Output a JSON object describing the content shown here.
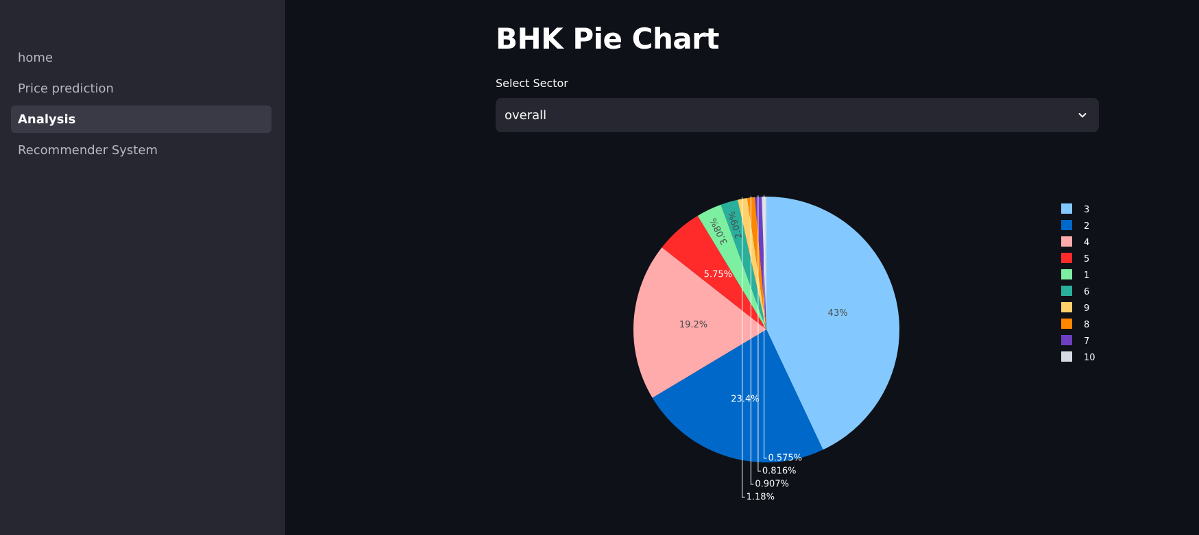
{
  "sidebar": {
    "items": [
      {
        "label": "home",
        "active": false
      },
      {
        "label": "Price prediction",
        "active": false
      },
      {
        "label": "Analysis",
        "active": true
      },
      {
        "label": "Recommender System",
        "active": false
      }
    ]
  },
  "main": {
    "title": "BHK Pie Chart",
    "select": {
      "label": "Select Sector",
      "value": "overall",
      "icon": "chevron-down-icon"
    }
  },
  "chart_data": {
    "type": "pie",
    "title": "",
    "legend_position": "top-right",
    "slices": [
      {
        "label": "3",
        "value": 43,
        "text": "43%",
        "color": "#83c9ff",
        "text_color": "#4a4a4a"
      },
      {
        "label": "2",
        "value": 23.4,
        "text": "23.4%",
        "color": "#0068c9",
        "text_color": "#ffffff"
      },
      {
        "label": "4",
        "value": 19.2,
        "text": "19.2%",
        "color": "#ffabab",
        "text_color": "#4a4a4a"
      },
      {
        "label": "5",
        "value": 5.75,
        "text": "5.75%",
        "color": "#ff2b2b",
        "text_color": "#ffffff"
      },
      {
        "label": "1",
        "value": 3.08,
        "text": "3.08%",
        "color": "#7defa1",
        "text_color": "#4a4a4a"
      },
      {
        "label": "6",
        "value": 2.09,
        "text": "2.09%",
        "color": "#29b09d",
        "text_color": "#4a4a4a"
      },
      {
        "label": "9",
        "value": 1.18,
        "text": "1.18%",
        "color": "#ffd16a",
        "text_color": "#ffffff"
      },
      {
        "label": "8",
        "value": 0.907,
        "text": "0.907%",
        "color": "#ff8700",
        "text_color": "#ffffff"
      },
      {
        "label": "7",
        "value": 0.816,
        "text": "0.816%",
        "color": "#6d3fc0",
        "text_color": "#ffffff"
      },
      {
        "label": "10",
        "value": 0.575,
        "text": "0.575%",
        "color": "#d5dae5",
        "text_color": "#ffffff"
      }
    ]
  }
}
